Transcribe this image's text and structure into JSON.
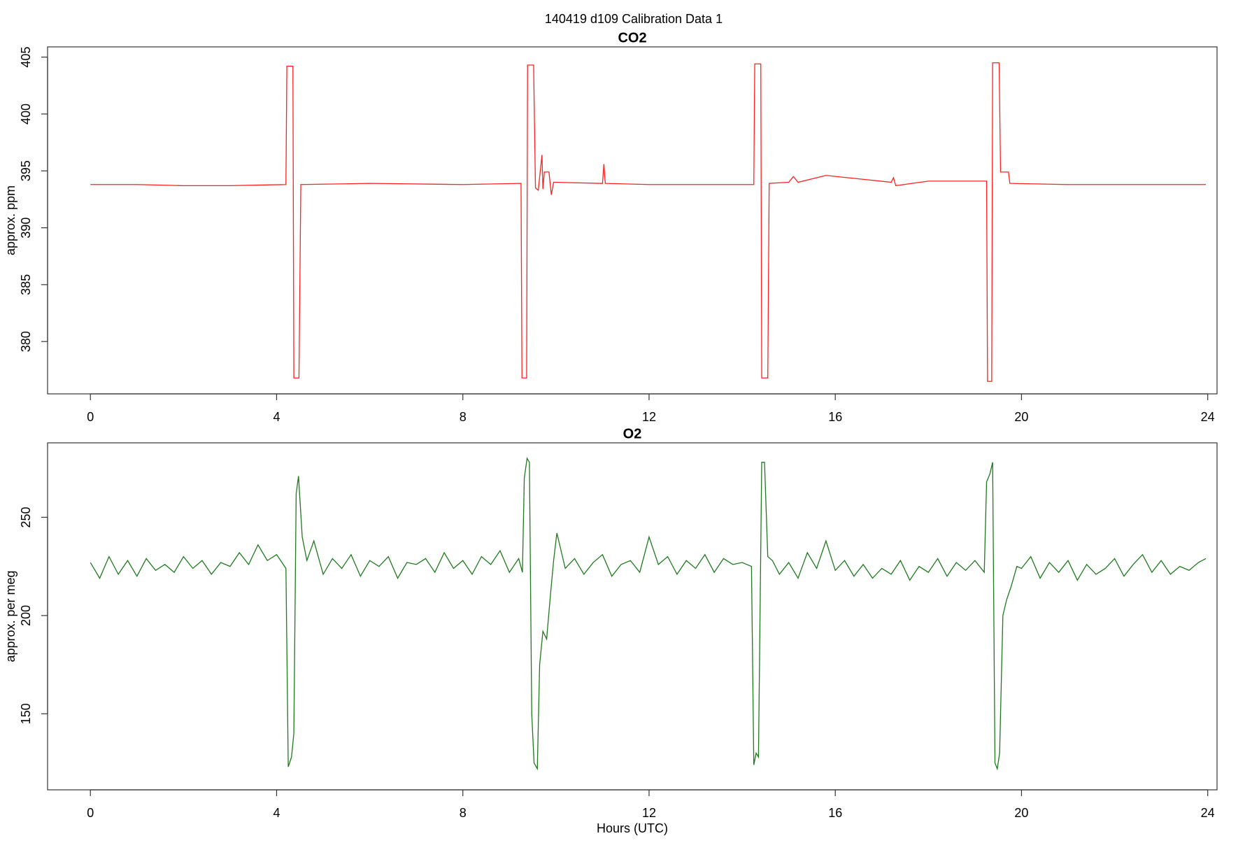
{
  "title": "140419   d109   Calibration Data 1",
  "chart_data": [
    {
      "type": "line",
      "title": "CO2",
      "ylabel": "approx. ppm",
      "color": "#ff2020",
      "x": [
        0,
        1,
        2,
        3,
        4.2,
        4.22,
        4.35,
        4.37,
        4.48,
        4.52,
        6,
        8,
        9.25,
        9.27,
        9.37,
        9.39,
        9.52,
        9.56,
        9.62,
        9.7,
        9.72,
        9.75,
        9.85,
        9.9,
        9.95,
        11,
        11.03,
        11.06,
        12,
        14.25,
        14.27,
        14.4,
        14.42,
        14.55,
        14.58,
        15,
        15.1,
        15.2,
        15.8,
        16.5,
        17.2,
        17.25,
        17.3,
        18,
        19.25,
        19.27,
        19.36,
        19.38,
        19.52,
        19.55,
        19.72,
        19.75,
        21,
        22,
        23.96
      ],
      "values": [
        393.8,
        393.8,
        393.7,
        393.7,
        393.8,
        404.2,
        404.2,
        376.8,
        376.8,
        393.8,
        393.9,
        393.8,
        393.9,
        376.8,
        376.8,
        404.3,
        404.3,
        393.5,
        393.3,
        396.4,
        393.4,
        394.9,
        394.9,
        392.9,
        394.0,
        393.9,
        395.6,
        393.9,
        393.8,
        393.8,
        404.4,
        404.4,
        376.8,
        376.8,
        393.9,
        394.0,
        394.5,
        394.0,
        394.6,
        394.3,
        394.0,
        394.4,
        393.7,
        394.1,
        394.1,
        376.5,
        376.5,
        404.5,
        404.5,
        394.9,
        394.9,
        393.9,
        393.8,
        393.8,
        393.8
      ],
      "xlim": [
        -0.92,
        24.2
      ],
      "xticks": [
        0,
        4,
        8,
        12,
        16,
        20,
        24
      ],
      "ylim": [
        375.4,
        405.9
      ],
      "yticks": [
        380,
        385,
        390,
        395,
        400,
        405
      ]
    },
    {
      "type": "line",
      "title": "O2",
      "ylabel": "approx. per meg",
      "xlabel": "Hours (UTC)",
      "color": "#1f7a1f",
      "x": [
        0,
        0.2,
        0.4,
        0.6,
        0.8,
        1,
        1.2,
        1.4,
        1.6,
        1.8,
        2,
        2.2,
        2.4,
        2.6,
        2.8,
        3,
        3.2,
        3.4,
        3.6,
        3.8,
        4,
        4.2,
        4.25,
        4.32,
        4.37,
        4.42,
        4.47,
        4.55,
        4.65,
        4.8,
        5,
        5.2,
        5.4,
        5.6,
        5.8,
        6,
        6.2,
        6.4,
        6.6,
        6.8,
        7,
        7.2,
        7.4,
        7.6,
        7.8,
        8,
        8.2,
        8.4,
        8.6,
        8.8,
        9,
        9.2,
        9.28,
        9.32,
        9.38,
        9.43,
        9.48,
        9.53,
        9.6,
        9.65,
        9.72,
        9.8,
        9.88,
        9.95,
        10.02,
        10.2,
        10.4,
        10.6,
        10.8,
        11,
        11.2,
        11.4,
        11.6,
        11.8,
        12,
        12.2,
        12.4,
        12.6,
        12.8,
        13,
        13.2,
        13.4,
        13.6,
        13.8,
        14,
        14.2,
        14.25,
        14.3,
        14.35,
        14.42,
        14.48,
        14.55,
        14.65,
        14.8,
        15,
        15.2,
        15.4,
        15.6,
        15.8,
        16,
        16.2,
        16.4,
        16.6,
        16.8,
        17,
        17.2,
        17.4,
        17.6,
        17.8,
        18,
        18.2,
        18.4,
        18.6,
        18.8,
        19,
        19.2,
        19.25,
        19.32,
        19.38,
        19.43,
        19.48,
        19.53,
        19.6,
        19.68,
        19.78,
        19.9,
        20,
        20.2,
        20.4,
        20.6,
        20.8,
        21,
        21.2,
        21.4,
        21.6,
        21.8,
        22,
        22.2,
        22.4,
        22.6,
        22.8,
        23,
        23.2,
        23.4,
        23.6,
        23.8,
        23.96
      ],
      "values": [
        227,
        219,
        230,
        221,
        228,
        220,
        229,
        223,
        226,
        222,
        230,
        224,
        228,
        221,
        227,
        225,
        232,
        226,
        236,
        228,
        231,
        224,
        123,
        128,
        140,
        262,
        271,
        240,
        228,
        238,
        221,
        229,
        224,
        231,
        220,
        228,
        225,
        230,
        219,
        227,
        226,
        229,
        222,
        232,
        224,
        228,
        221,
        230,
        226,
        233,
        222,
        229,
        222,
        270,
        280,
        278,
        150,
        125,
        122,
        175,
        192,
        188,
        210,
        228,
        242,
        224,
        229,
        221,
        227,
        231,
        220,
        226,
        228,
        222,
        240,
        226,
        230,
        221,
        228,
        224,
        231,
        222,
        229,
        226,
        227,
        225,
        124,
        130,
        128,
        278,
        278,
        230,
        228,
        221,
        227,
        219,
        232,
        224,
        238,
        223,
        228,
        220,
        226,
        219,
        224,
        221,
        228,
        218,
        225,
        222,
        229,
        220,
        227,
        223,
        228,
        222,
        268,
        272,
        278,
        125,
        122,
        130,
        200,
        208,
        215,
        225,
        224,
        230,
        219,
        227,
        222,
        228,
        218,
        226,
        221,
        224,
        229,
        220,
        226,
        231,
        222,
        228,
        221,
        225,
        223,
        227,
        229
      ],
      "xlim": [
        -0.92,
        24.2
      ],
      "xticks": [
        0,
        4,
        8,
        12,
        16,
        20,
        24
      ],
      "ylim": [
        111.3,
        287.9
      ],
      "yticks": [
        150,
        200,
        250
      ]
    }
  ]
}
